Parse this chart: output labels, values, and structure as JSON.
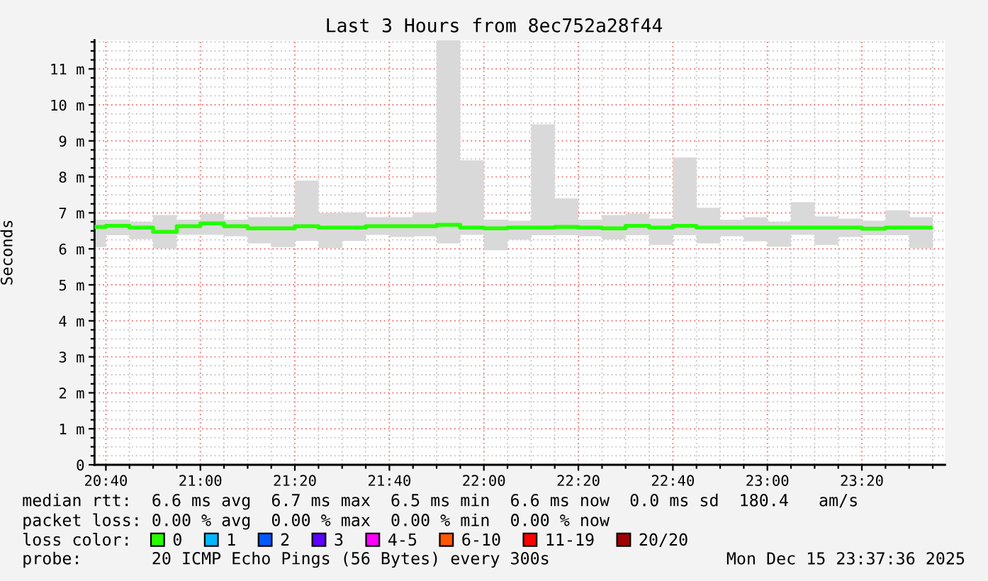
{
  "chart_data": {
    "type": "step",
    "title": "Last 3 Hours from 8ec752a28f44",
    "ylabel": "Seconds",
    "legend_title": "loss color:",
    "annotations": [
      "median rtt:  6.6 ms avg  6.7 ms max  6.5 ms min  6.6 ms now  0.0 ms sd  180.4   am/s",
      "packet loss: 0.00 % avg  0.00 % max  0.00 % min  0.00 % now",
      "probe:       20 ICMP Echo Pings (56 Bytes) every 300s",
      "Mon Dec 15 23:37:36 2025"
    ],
    "x": [
      20.6667,
      20.75,
      20.8333,
      20.9167,
      21,
      21.0833,
      21.1667,
      21.25,
      21.3333,
      21.4167,
      21.5,
      21.5833,
      21.6667,
      21.75,
      21.8333,
      21.9167,
      22,
      22.0833,
      22.1667,
      22.25,
      22.3333,
      22.4167,
      22.5,
      22.5833,
      22.6667,
      22.75,
      22.8333,
      22.9167,
      23,
      23.0833,
      23.1667,
      23.25,
      23.3333,
      23.4167,
      23.5,
      23.5833
    ],
    "series": [
      {
        "name": "0",
        "color": "#26ff00",
        "values": [
          6.61,
          6.64,
          6.59,
          6.47,
          6.63,
          6.71,
          6.63,
          6.57,
          6.57,
          6.63,
          6.59,
          6.59,
          6.63,
          6.63,
          6.63,
          6.67,
          6.59,
          6.57,
          6.59,
          6.59,
          6.61,
          6.59,
          6.57,
          6.64,
          6.59,
          6.64,
          6.59,
          6.59,
          6.59,
          6.59,
          6.59,
          6.59,
          6.59,
          6.56,
          6.59,
          6.59
        ],
        "lower": [
          6.05,
          6.38,
          6.27,
          6.01,
          6.39,
          6.39,
          6.35,
          6.15,
          6.05,
          6.22,
          6.02,
          6.22,
          6.39,
          6.33,
          6.35,
          6.15,
          6.39,
          5.96,
          6.25,
          6.38,
          6.38,
          6.35,
          6.26,
          6.38,
          6.11,
          6.38,
          6.15,
          6.35,
          6.21,
          6.06,
          6.39,
          6.11,
          6.33,
          6.38,
          6.38,
          6.02
        ],
        "upper": [
          6.81,
          6.81,
          6.75,
          6.94,
          6.81,
          6.98,
          6.81,
          6.88,
          6.88,
          7.9,
          7.0,
          7.01,
          6.88,
          6.88,
          7.01,
          11.8,
          8.46,
          6.81,
          6.78,
          9.46,
          7.4,
          6.81,
          6.94,
          6.98,
          6.84,
          8.54,
          7.14,
          6.81,
          6.88,
          6.75,
          7.3,
          6.9,
          6.84,
          6.78,
          7.07,
          6.88
        ]
      },
      {
        "name": "1",
        "color": "#00b8ff",
        "values": [
          null,
          null,
          null,
          null,
          null,
          null,
          null,
          null,
          null,
          null,
          null,
          null,
          null,
          null,
          null,
          null,
          null,
          null,
          null,
          null,
          null,
          null,
          null,
          null,
          null,
          null,
          null,
          null,
          null,
          null,
          null,
          null,
          null,
          null,
          null,
          null
        ]
      },
      {
        "name": "2",
        "color": "#0059ff",
        "values": [
          null,
          null,
          null,
          null,
          null,
          null,
          null,
          null,
          null,
          null,
          null,
          null,
          null,
          null,
          null,
          null,
          null,
          null,
          null,
          null,
          null,
          null,
          null,
          null,
          null,
          null,
          null,
          null,
          null,
          null,
          null,
          null,
          null,
          null,
          null,
          null
        ]
      },
      {
        "name": "3",
        "color": "#5e00ff",
        "values": [
          null,
          null,
          null,
          null,
          null,
          null,
          null,
          null,
          null,
          null,
          null,
          null,
          null,
          null,
          null,
          null,
          null,
          null,
          null,
          null,
          null,
          null,
          null,
          null,
          null,
          null,
          null,
          null,
          null,
          null,
          null,
          null,
          null,
          null,
          null,
          null
        ]
      },
      {
        "name": "4-5",
        "color": "#ff00ff",
        "values": [
          null,
          null,
          null,
          null,
          null,
          null,
          null,
          null,
          null,
          null,
          null,
          null,
          null,
          null,
          null,
          null,
          null,
          null,
          null,
          null,
          null,
          null,
          null,
          null,
          null,
          null,
          null,
          null,
          null,
          null,
          null,
          null,
          null,
          null,
          null,
          null
        ]
      },
      {
        "name": "6-10",
        "color": "#ff5500",
        "values": [
          null,
          null,
          null,
          null,
          null,
          null,
          null,
          null,
          null,
          null,
          null,
          null,
          null,
          null,
          null,
          null,
          null,
          null,
          null,
          null,
          null,
          null,
          null,
          null,
          null,
          null,
          null,
          null,
          null,
          null,
          null,
          null,
          null,
          null,
          null,
          null
        ]
      },
      {
        "name": "11-19",
        "color": "#ff0000",
        "values": [
          null,
          null,
          null,
          null,
          null,
          null,
          null,
          null,
          null,
          null,
          null,
          null,
          null,
          null,
          null,
          null,
          null,
          null,
          null,
          null,
          null,
          null,
          null,
          null,
          null,
          null,
          null,
          null,
          null,
          null,
          null,
          null,
          null,
          null,
          null,
          null
        ]
      },
      {
        "name": "20/20",
        "color": "#a00000",
        "values": [
          null,
          null,
          null,
          null,
          null,
          null,
          null,
          null,
          null,
          null,
          null,
          null,
          null,
          null,
          null,
          null,
          null,
          null,
          null,
          null,
          null,
          null,
          null,
          null,
          null,
          null,
          null,
          null,
          null,
          null,
          null,
          null,
          null,
          null,
          null,
          null
        ]
      }
    ],
    "xlim": [
      20.6267,
      23.6267
    ],
    "ylim": [
      0,
      11.8
    ],
    "xticks": [
      {
        "value": 20.6667,
        "label": "20:40"
      },
      {
        "value": 20.75,
        "label": null
      },
      {
        "value": 20.8333,
        "label": null
      },
      {
        "value": 20.9167,
        "label": null
      },
      {
        "value": 21,
        "label": "21:00"
      },
      {
        "value": 21.0833,
        "label": null
      },
      {
        "value": 21.1667,
        "label": null
      },
      {
        "value": 21.25,
        "label": null
      },
      {
        "value": 21.3333,
        "label": "21:20"
      },
      {
        "value": 21.4167,
        "label": null
      },
      {
        "value": 21.5,
        "label": null
      },
      {
        "value": 21.5833,
        "label": null
      },
      {
        "value": 21.6667,
        "label": "21:40"
      },
      {
        "value": 21.75,
        "label": null
      },
      {
        "value": 21.8333,
        "label": null
      },
      {
        "value": 21.9167,
        "label": null
      },
      {
        "value": 22,
        "label": "22:00"
      },
      {
        "value": 22.0833,
        "label": null
      },
      {
        "value": 22.1667,
        "label": null
      },
      {
        "value": 22.25,
        "label": null
      },
      {
        "value": 22.3333,
        "label": "22:20"
      },
      {
        "value": 22.4167,
        "label": null
      },
      {
        "value": 22.5,
        "label": null
      },
      {
        "value": 22.5833,
        "label": null
      },
      {
        "value": 22.6667,
        "label": "22:40"
      },
      {
        "value": 22.75,
        "label": null
      },
      {
        "value": 22.8333,
        "label": null
      },
      {
        "value": 22.9167,
        "label": null
      },
      {
        "value": 23,
        "label": "23:00"
      },
      {
        "value": 23.0833,
        "label": null
      },
      {
        "value": 23.1667,
        "label": null
      },
      {
        "value": 23.25,
        "label": null
      },
      {
        "value": 23.3333,
        "label": "23:20"
      },
      {
        "value": 23.4167,
        "label": null
      },
      {
        "value": 23.5,
        "label": null
      },
      {
        "value": 23.5833,
        "label": null
      }
    ],
    "yticks": [
      0,
      {
        "value": 0.25,
        "label": null
      },
      {
        "value": 0.5,
        "label": null
      },
      {
        "value": 0.75,
        "label": null
      },
      {
        "value": 1,
        "label": "1 m"
      },
      {
        "value": 1.25,
        "label": null
      },
      {
        "value": 1.5,
        "label": null
      },
      {
        "value": 1.75,
        "label": null
      },
      {
        "value": 2,
        "label": "2 m"
      },
      {
        "value": 2.25,
        "label": null
      },
      {
        "value": 2.5,
        "label": null
      },
      {
        "value": 2.75,
        "label": null
      },
      {
        "value": 3,
        "label": "3 m"
      },
      {
        "value": 3.25,
        "label": null
      },
      {
        "value": 3.5,
        "label": null
      },
      {
        "value": 3.75,
        "label": null
      },
      {
        "value": 4,
        "label": "4 m"
      },
      {
        "value": 4.25,
        "label": null
      },
      {
        "value": 4.5,
        "label": null
      },
      {
        "value": 4.75,
        "label": null
      },
      {
        "value": 5,
        "label": "5 m"
      },
      {
        "value": 5.25,
        "label": null
      },
      {
        "value": 5.5,
        "label": null
      },
      {
        "value": 5.75,
        "label": null
      },
      {
        "value": 6,
        "label": "6 m"
      },
      {
        "value": 6.25,
        "label": null
      },
      {
        "value": 6.5,
        "label": null
      },
      {
        "value": 6.75,
        "label": null
      },
      {
        "value": 7,
        "label": "7 m"
      },
      {
        "value": 7.25,
        "label": null
      },
      {
        "value": 7.5,
        "label": null
      },
      {
        "value": 7.75,
        "label": null
      },
      {
        "value": 8,
        "label": "8 m"
      },
      {
        "value": 8.25,
        "label": null
      },
      {
        "value": 8.5,
        "label": null
      },
      {
        "value": 8.75,
        "label": null
      },
      {
        "value": 9,
        "label": "9 m"
      },
      {
        "value": 9.25,
        "label": null
      },
      {
        "value": 9.5,
        "label": null
      },
      {
        "value": 9.75,
        "label": null
      },
      {
        "value": 10,
        "label": "10 m"
      },
      {
        "value": 10.25,
        "label": null
      },
      {
        "value": 10.5,
        "label": null
      },
      {
        "value": 10.75,
        "label": null
      },
      {
        "value": 11,
        "label": "11 m"
      },
      {
        "value": 11.25,
        "label": null
      },
      {
        "value": 11.5,
        "label": null
      },
      {
        "value": 11.75,
        "label": null
      }
    ],
    "grid": true,
    "legend": "bottom"
  }
}
